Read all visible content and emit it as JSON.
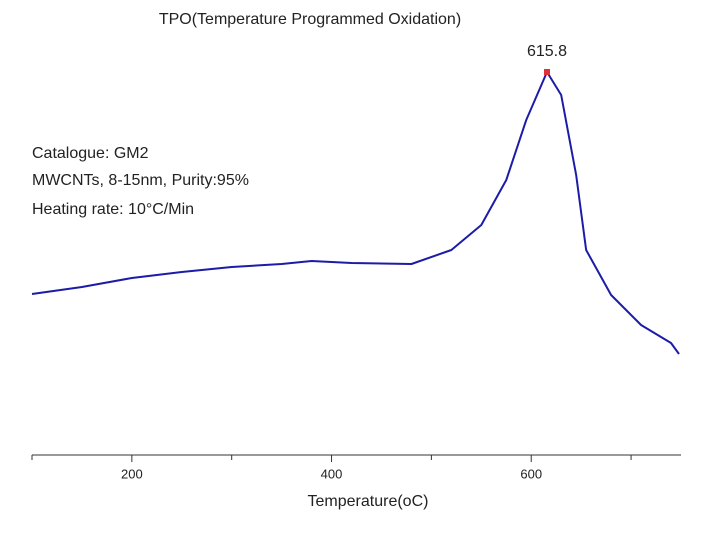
{
  "chart_data": {
    "type": "line",
    "title": "TPO(Temperature Programmed Oxidation)",
    "annotations": [
      "Catalogue: GM2",
      "MWCNTs, 8-15nm, Purity:95%",
      "Heating rate: 10°C/Min"
    ],
    "xlabel": "Temperature(oC)",
    "x": [
      100,
      150,
      200,
      250,
      300,
      350,
      380,
      420,
      480,
      520,
      550,
      575,
      595,
      615.8,
      630,
      645,
      655,
      680,
      710,
      740,
      748
    ],
    "series": [
      {
        "name": null,
        "color": "#1c1ca8",
        "values": [
          161,
          168,
          177,
          183,
          188,
          191,
          194,
          192,
          191,
          205,
          230,
          275,
          335,
          383,
          360,
          280,
          205,
          160,
          130,
          112,
          101
        ]
      }
    ],
    "peak": {
      "x": 615.8,
      "y": 383,
      "color": "#e0303a"
    },
    "xlim": [
      100,
      750
    ],
    "xticks": [
      200,
      400,
      600
    ],
    "xminorticks": [
      100,
      300,
      500,
      700
    ],
    "ylim": [
      0,
      400
    ]
  }
}
